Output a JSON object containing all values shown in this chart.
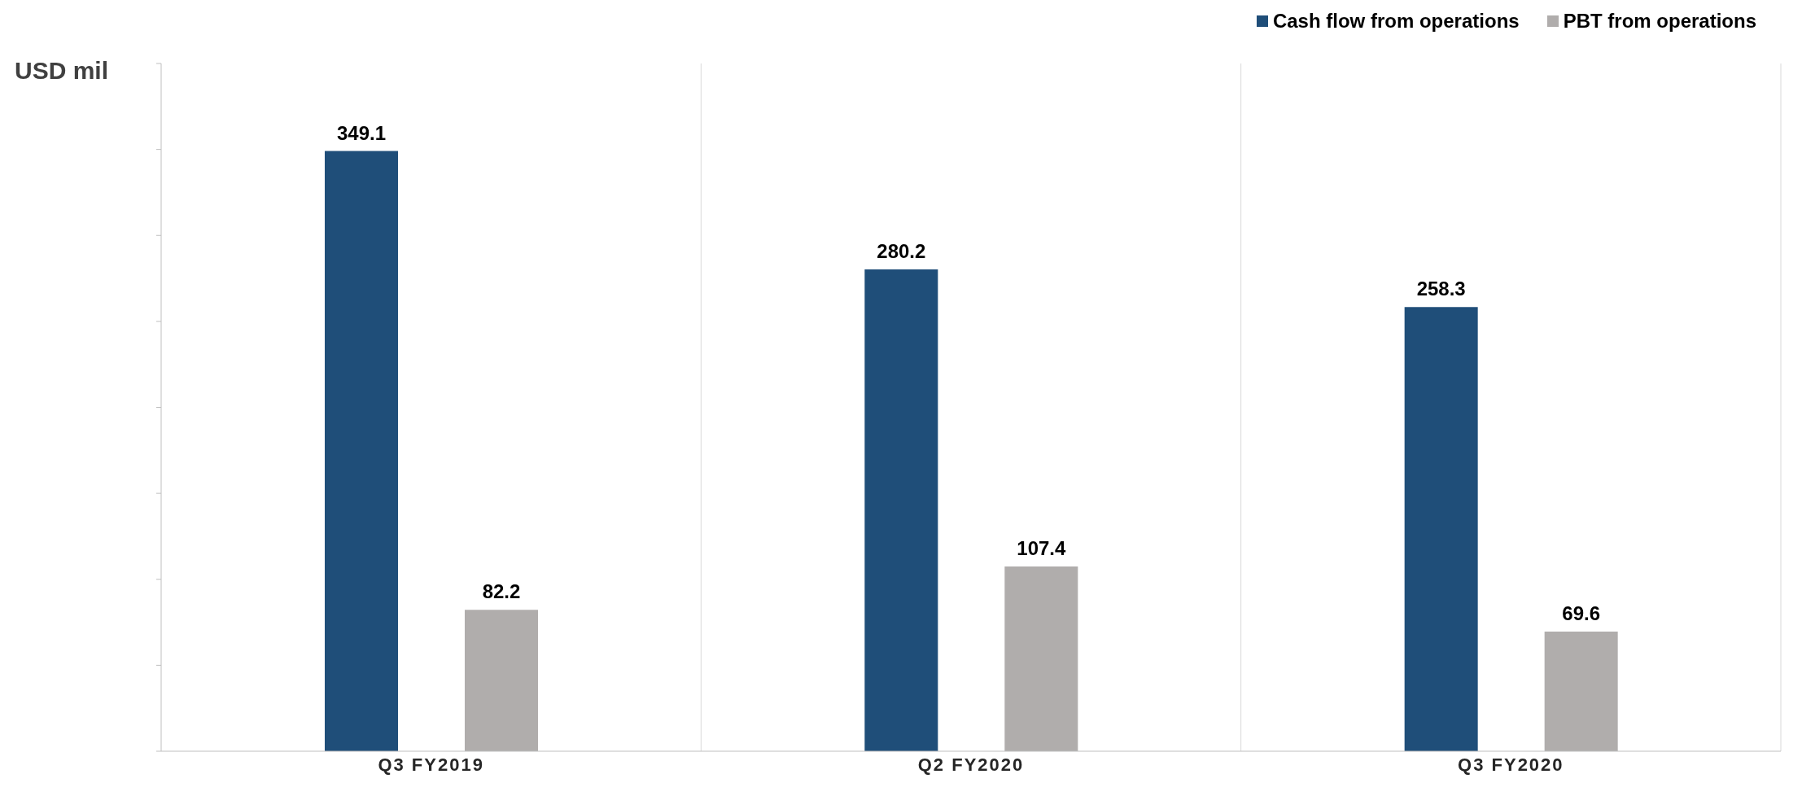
{
  "chart_data": {
    "type": "bar",
    "ylabel": "USD mil",
    "categories": [
      "Q3 FY2019",
      "Q2 FY2020",
      "Q3 FY2020"
    ],
    "series": [
      {
        "name": "Cash flow from operations",
        "color": "#1f4e79",
        "values": [
          349.1,
          280.2,
          258.3
        ]
      },
      {
        "name": "PBT from operations",
        "color": "#b0adac",
        "values": [
          82.2,
          107.4,
          69.6
        ]
      }
    ],
    "ylim": [
      0,
      400
    ],
    "yticks": [
      {
        "value": 0,
        "label": null
      },
      {
        "value": 50,
        "label": null
      },
      {
        "value": 100,
        "label": null
      },
      {
        "value": 150,
        "label": null
      },
      {
        "value": 200,
        "label": null
      },
      {
        "value": 250,
        "label": null
      },
      {
        "value": 300,
        "label": null
      },
      {
        "value": 350,
        "label": null
      },
      {
        "value": 400,
        "label": null
      }
    ],
    "tick_labels": "x",
    "grid": "x",
    "legend": "top right",
    "data_labels": true
  }
}
